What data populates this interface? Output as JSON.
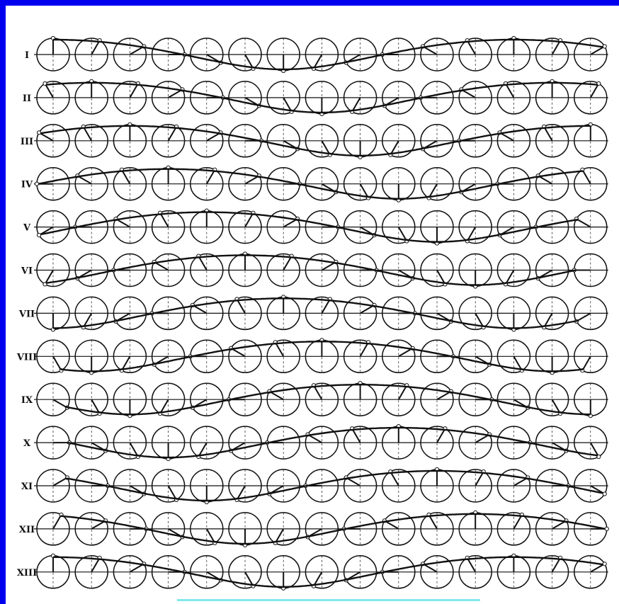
{
  "diagram": {
    "rows": [
      {
        "label": "I",
        "phase_index": 0
      },
      {
        "label": "II",
        "phase_index": 1
      },
      {
        "label": "III",
        "phase_index": 2
      },
      {
        "label": "IV",
        "phase_index": 3
      },
      {
        "label": "V",
        "phase_index": 4
      },
      {
        "label": "VI",
        "phase_index": 5
      },
      {
        "label": "VII",
        "phase_index": 6
      },
      {
        "label": "VIII",
        "phase_index": 7
      },
      {
        "label": "IX",
        "phase_index": 8
      },
      {
        "label": "X",
        "phase_index": 9
      },
      {
        "label": "XI",
        "phase_index": 10
      },
      {
        "label": "XII",
        "phase_index": 11
      },
      {
        "label": "XIII",
        "phase_index": 12
      }
    ],
    "circles_per_row": 15,
    "steps_per_cycle": 12,
    "colors": {
      "frame": "#0000f0",
      "ink": "#111111",
      "caption_bar": "#7fe9ee"
    }
  }
}
